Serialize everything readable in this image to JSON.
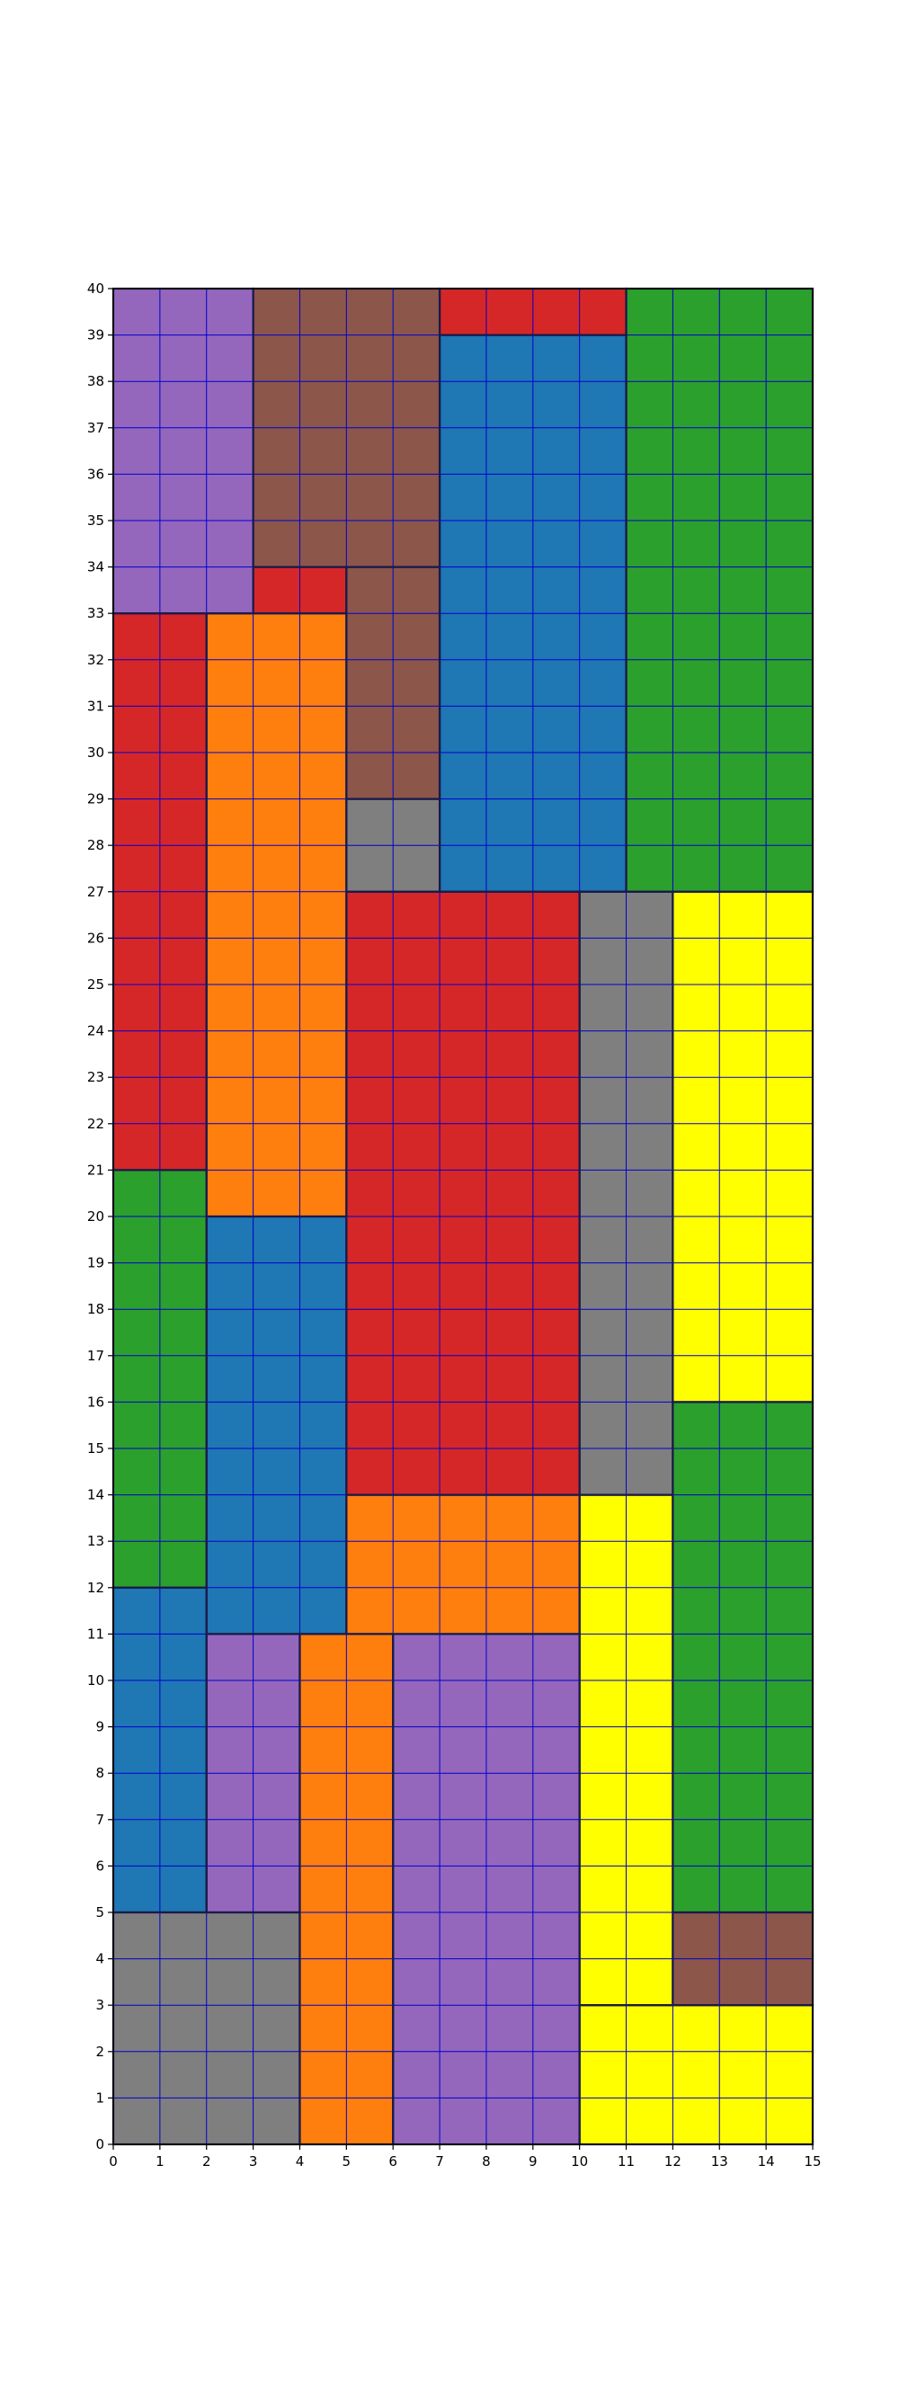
{
  "grid": {
    "x_ticks": [
      0,
      1,
      2,
      3,
      4,
      5,
      6,
      7,
      8,
      9,
      10,
      11,
      12,
      13,
      14,
      15
    ],
    "y_ticks": [
      0,
      1,
      2,
      3,
      4,
      5,
      6,
      7,
      8,
      9,
      10,
      11,
      12,
      13,
      14,
      15,
      16,
      17,
      18,
      19,
      20,
      21,
      22,
      23,
      24,
      25,
      26,
      27,
      28,
      29,
      30,
      31,
      32,
      33,
      34,
      35,
      36,
      37,
      38,
      39,
      40
    ],
    "x_range": [
      0,
      15
    ],
    "y_range": [
      0,
      40
    ],
    "grid_color": "#0000cc",
    "border_color": "#1a1a4a"
  },
  "colors": {
    "purple": "#9467bd",
    "brown": "#8c564b",
    "red": "#d62728",
    "blue": "#1f77b4",
    "green": "#2ca02c",
    "orange": "#ff7f0e",
    "gray": "#7f7f7f",
    "yellow": "#ffff00"
  },
  "regions": [
    {
      "color": "purple",
      "x0": 0,
      "y0": 33,
      "x1": 3,
      "y1": 40
    },
    {
      "color": "brown",
      "x0": 3,
      "y0": 34,
      "x1": 7,
      "y1": 40
    },
    {
      "color": "red",
      "x0": 7,
      "y0": 39,
      "x1": 11,
      "y1": 40
    },
    {
      "color": "blue",
      "x0": 7,
      "y0": 27,
      "x1": 11,
      "y1": 39
    },
    {
      "color": "green",
      "x0": 11,
      "y0": 27,
      "x1": 15,
      "y1": 40
    },
    {
      "color": "red",
      "x0": 3,
      "y0": 33,
      "x1": 5,
      "y1": 34
    },
    {
      "color": "brown",
      "x0": 5,
      "y0": 29,
      "x1": 7,
      "y1": 34
    },
    {
      "color": "gray",
      "x0": 5,
      "y0": 27,
      "x1": 7,
      "y1": 29
    },
    {
      "color": "red",
      "x0": 0,
      "y0": 21,
      "x1": 2,
      "y1": 33
    },
    {
      "color": "orange",
      "x0": 2,
      "y0": 20,
      "x1": 5,
      "y1": 33
    },
    {
      "color": "red",
      "x0": 5,
      "y0": 14,
      "x1": 10,
      "y1": 27
    },
    {
      "color": "gray",
      "x0": 10,
      "y0": 14,
      "x1": 12,
      "y1": 27
    },
    {
      "color": "yellow",
      "x0": 12,
      "y0": 16,
      "x1": 15,
      "y1": 27
    },
    {
      "color": "green",
      "x0": 0,
      "y0": 12,
      "x1": 2,
      "y1": 21
    },
    {
      "color": "blue",
      "x0": 2,
      "y0": 11,
      "x1": 5,
      "y1": 20
    },
    {
      "color": "green",
      "x0": 12,
      "y0": 5,
      "x1": 15,
      "y1": 16
    },
    {
      "color": "orange",
      "x0": 5,
      "y0": 11,
      "x1": 10,
      "y1": 14
    },
    {
      "color": "yellow",
      "x0": 10,
      "y0": 3,
      "x1": 12,
      "y1": 14
    },
    {
      "color": "blue",
      "x0": 0,
      "y0": 5,
      "x1": 2,
      "y1": 12
    },
    {
      "color": "purple",
      "x0": 2,
      "y0": 5,
      "x1": 4,
      "y1": 11
    },
    {
      "color": "orange",
      "x0": 4,
      "y0": 0,
      "x1": 6,
      "y1": 11
    },
    {
      "color": "purple",
      "x0": 6,
      "y0": 0,
      "x1": 10,
      "y1": 11
    },
    {
      "color": "gray",
      "x0": 0,
      "y0": 0,
      "x1": 4,
      "y1": 5
    },
    {
      "color": "brown",
      "x0": 12,
      "y0": 3,
      "x1": 15,
      "y1": 5
    },
    {
      "color": "yellow",
      "x0": 10,
      "y0": 0,
      "x1": 15,
      "y1": 3
    }
  ]
}
